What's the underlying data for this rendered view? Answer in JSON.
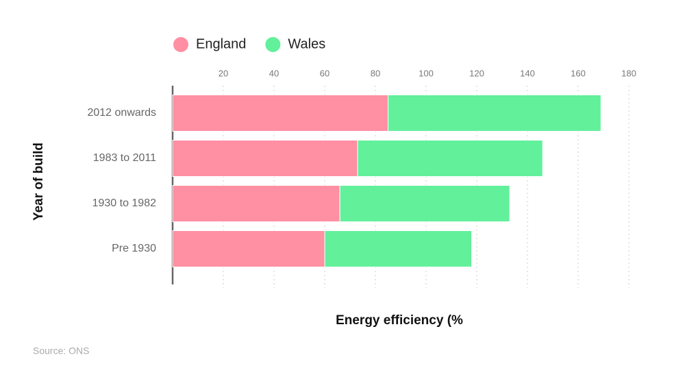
{
  "chart_data": {
    "type": "stacked-bar-horizontal",
    "x_label": "Energy efficiency (%",
    "y_label": "Year of build",
    "source": "Source: ONS",
    "categories": [
      "2012 onwards",
      "1983 to 2011",
      "1930 to 1982",
      "Pre 1930"
    ],
    "series": [
      {
        "name": "England",
        "color": "#ff8fa3",
        "values": [
          85,
          73,
          66,
          60
        ]
      },
      {
        "name": "Wales",
        "color": "#62f09b",
        "values": [
          84,
          73,
          67,
          58
        ]
      }
    ],
    "xlim": [
      0,
      180
    ],
    "xticks": [
      20,
      40,
      60,
      80,
      100,
      120,
      140,
      160,
      180
    ],
    "grid": true
  }
}
